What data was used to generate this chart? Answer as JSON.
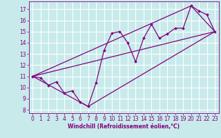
{
  "xlabel": "Windchill (Refroidissement éolien,°C)",
  "bg_color": "#c8eaea",
  "line_color": "#800080",
  "grid_color": "#ffffff",
  "xlim": [
    -0.5,
    23.5
  ],
  "ylim": [
    7.7,
    17.7
  ],
  "yticks": [
    8,
    9,
    10,
    11,
    12,
    13,
    14,
    15,
    16,
    17
  ],
  "xticks": [
    0,
    1,
    2,
    3,
    4,
    5,
    6,
    7,
    8,
    9,
    10,
    11,
    12,
    13,
    14,
    15,
    16,
    17,
    18,
    19,
    20,
    21,
    22,
    23
  ],
  "scatter_x": [
    0,
    1,
    2,
    3,
    4,
    5,
    6,
    7,
    8,
    9,
    10,
    11,
    12,
    13,
    14,
    15,
    16,
    17,
    18,
    19,
    20,
    21,
    22,
    23
  ],
  "scatter_y": [
    11.0,
    10.85,
    10.2,
    10.5,
    9.5,
    9.7,
    8.7,
    8.3,
    10.4,
    13.3,
    14.85,
    15.0,
    14.0,
    12.3,
    14.4,
    15.65,
    14.4,
    14.8,
    15.3,
    15.3,
    17.3,
    16.85,
    16.5,
    15.0
  ],
  "line1_x": [
    0,
    23
  ],
  "line1_y": [
    11.0,
    15.0
  ],
  "line2_x": [
    0,
    23
  ],
  "line2_y": [
    11.0,
    15.0
  ],
  "line3_x": [
    0,
    7,
    23
  ],
  "line3_y": [
    11.0,
    8.3,
    15.0
  ],
  "line4_x": [
    0,
    20,
    23
  ],
  "line4_y": [
    11.0,
    17.3,
    15.0
  ]
}
